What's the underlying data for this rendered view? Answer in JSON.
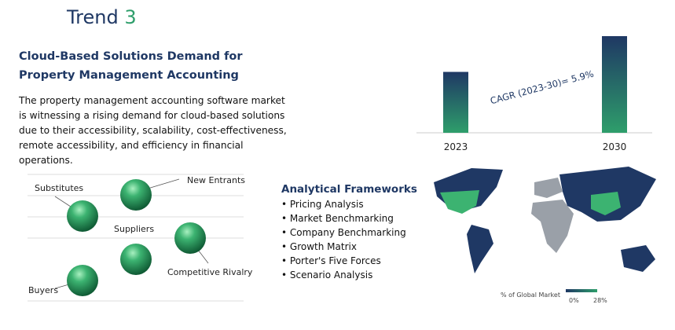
{
  "header": {
    "title_word": "Trend",
    "title_number": "3"
  },
  "section": {
    "heading_line1": "Cloud-Based Solutions Demand for",
    "heading_line2": "Property Management Accounting",
    "body": "The property management accounting software market is witnessing a rising demand for cloud-based solutions due to their accessibility, scalability, cost-effectiveness, remote accessibility, and efficiency in financial operations."
  },
  "chart_data": {
    "type": "bar",
    "categories": [
      "2023",
      "2030"
    ],
    "values": [
      63,
      100
    ],
    "annotation": "CAGR (2023-30)= 5.9%"
  },
  "five_forces": {
    "labels": [
      "Substitutes",
      "New Entrants",
      "Suppliers",
      "Competitive Rivalry",
      "Buyers"
    ]
  },
  "frameworks": {
    "title": "Analytical Frameworks",
    "items": [
      "Pricing Analysis",
      "Market Benchmarking",
      "Company Benchmarking",
      "Growth Matrix",
      "Porter's Five Forces",
      "Scenario Analysis"
    ]
  },
  "map_legend": {
    "title": "% of Global Market",
    "min": "0%",
    "max": "28%"
  }
}
